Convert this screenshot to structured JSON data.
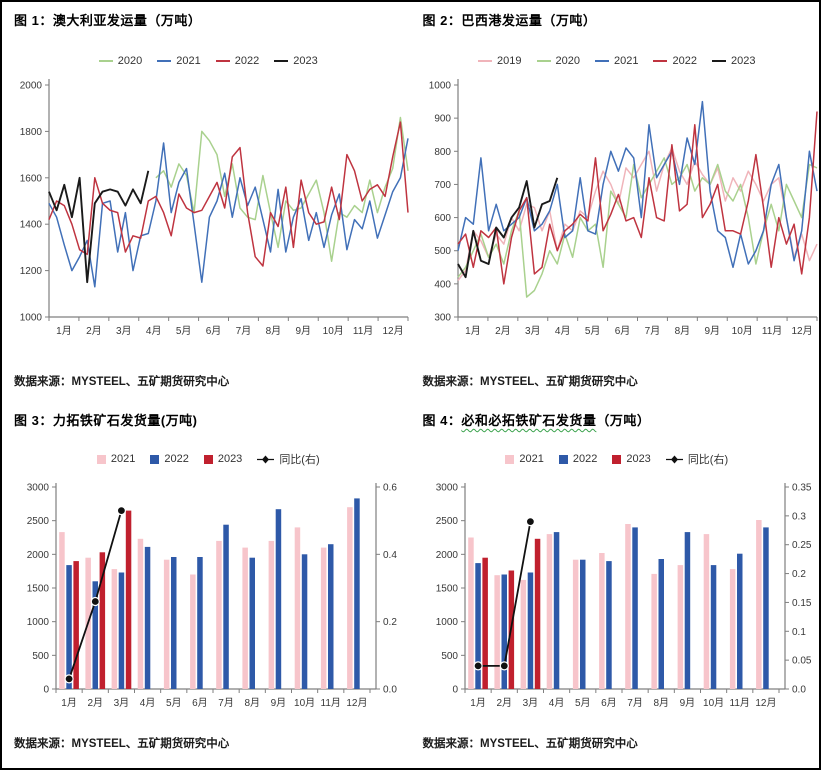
{
  "chart_data": [
    {
      "type": "line",
      "title": "图 1：澳大利亚发运量（万吨）",
      "source": "数据来源：MYSTEEL、五矿期货研究中心",
      "ylabel": "万吨",
      "ylim": [
        1000,
        2000
      ],
      "yticks": [
        1000,
        1200,
        1400,
        1600,
        1800,
        2000
      ],
      "x_months": [
        "1月",
        "2月",
        "3月",
        "4月",
        "5月",
        "6月",
        "7月",
        "8月",
        "9月",
        "10月",
        "11月",
        "12月"
      ],
      "points_per_month": 4,
      "grid": false,
      "legend_position": "top",
      "series": [
        {
          "name": "2020",
          "color": "#a9d18e",
          "values": [
            null,
            null,
            null,
            null,
            null,
            null,
            null,
            null,
            null,
            null,
            null,
            null,
            null,
            null,
            1600,
            1630,
            1560,
            1660,
            1610,
            1450,
            1800,
            1760,
            1700,
            1520,
            1660,
            1470,
            1430,
            1420,
            1610,
            1450,
            1300,
            1500,
            1460,
            1470,
            1530,
            1590,
            1450,
            1240,
            1450,
            1430,
            1480,
            1450,
            1590,
            1450,
            1560,
            1640,
            1860,
            1630
          ]
        },
        {
          "name": "2021",
          "color": "#4170b8",
          "values": [
            1490,
            1430,
            1310,
            1200,
            1260,
            1330,
            1130,
            1490,
            1500,
            1280,
            1450,
            1200,
            1350,
            1360,
            1500,
            1750,
            1450,
            1580,
            1640,
            1400,
            1150,
            1430,
            1500,
            1620,
            1430,
            1600,
            1480,
            1560,
            1420,
            1280,
            1550,
            1280,
            1430,
            1510,
            1330,
            1450,
            1300,
            1440,
            1530,
            1290,
            1420,
            1380,
            1500,
            1340,
            1440,
            1540,
            1600,
            1770
          ]
        },
        {
          "name": "2022",
          "color": "#bf3440",
          "values": [
            1420,
            1500,
            1480,
            1400,
            1290,
            1270,
            1600,
            1490,
            1460,
            1450,
            1280,
            1350,
            1340,
            1500,
            1520,
            1450,
            1350,
            1530,
            1470,
            1450,
            1460,
            1520,
            1580,
            1470,
            1690,
            1730,
            1450,
            1260,
            1220,
            1450,
            1390,
            1560,
            1300,
            1590,
            1450,
            1400,
            1410,
            1560,
            1420,
            1700,
            1630,
            1500,
            1550,
            1570,
            1520,
            1690,
            1840,
            1450
          ]
        },
        {
          "name": "2023",
          "color": "#1a1a1a",
          "values": [
            1540,
            1460,
            1570,
            1430,
            1600,
            1150,
            1490,
            1540,
            1550,
            1540,
            1480,
            1550,
            1490,
            1630,
            null,
            null,
            null,
            null,
            null,
            null,
            null,
            null,
            null,
            null,
            null,
            null,
            null,
            null,
            null,
            null,
            null,
            null,
            null,
            null,
            null,
            null,
            null,
            null,
            null,
            null,
            null,
            null,
            null,
            null,
            null,
            null,
            null,
            null
          ]
        }
      ]
    },
    {
      "type": "line",
      "title": "图 2：巴西港发运量（万吨）",
      "source": "数据来源：MYSTEEL、五矿期货研究中心",
      "ylabel": "万吨",
      "ylim": [
        300,
        1000
      ],
      "yticks": [
        300,
        400,
        500,
        600,
        700,
        800,
        900,
        1000
      ],
      "x_months": [
        "1月",
        "2月",
        "3月",
        "4月",
        "5月",
        "6月",
        "7月",
        "8月",
        "9月",
        "10月",
        "11月",
        "12月"
      ],
      "points_per_month": 4,
      "grid": false,
      "legend_position": "top",
      "series": [
        {
          "name": "2019",
          "color": "#f0b4ba",
          "values": [
            410,
            440,
            560,
            530,
            480,
            550,
            520,
            600,
            560,
            640,
            630,
            560,
            620,
            500,
            580,
            560,
            620,
            600,
            680,
            740,
            700,
            640,
            750,
            720,
            760,
            800,
            680,
            760,
            810,
            740,
            700,
            770,
            730,
            700,
            750,
            650,
            720,
            680,
            740,
            700,
            650,
            700,
            720,
            600,
            480,
            550,
            470,
            520
          ]
        },
        {
          "name": "2020",
          "color": "#a9d18e",
          "values": [
            420,
            450,
            500,
            550,
            480,
            520,
            460,
            560,
            620,
            360,
            380,
            430,
            500,
            460,
            550,
            480,
            600,
            560,
            580,
            450,
            680,
            640,
            600,
            760,
            660,
            700,
            740,
            780,
            700,
            720,
            760,
            680,
            720,
            700,
            760,
            680,
            650,
            700,
            600,
            460,
            560,
            640,
            560,
            700,
            650,
            600,
            760,
            750
          ]
        },
        {
          "name": "2021",
          "color": "#4170b8",
          "values": [
            500,
            600,
            580,
            780,
            560,
            640,
            560,
            580,
            600,
            660,
            560,
            580,
            620,
            700,
            540,
            560,
            720,
            560,
            550,
            700,
            800,
            740,
            810,
            780,
            600,
            880,
            720,
            760,
            800,
            700,
            840,
            760,
            950,
            680,
            560,
            540,
            450,
            550,
            460,
            500,
            560,
            700,
            760,
            600,
            470,
            560,
            800,
            680
          ]
        },
        {
          "name": "2022",
          "color": "#bf3440",
          "values": [
            520,
            550,
            450,
            560,
            540,
            570,
            400,
            540,
            620,
            660,
            430,
            450,
            580,
            500,
            560,
            580,
            610,
            590,
            780,
            560,
            610,
            670,
            590,
            600,
            540,
            720,
            600,
            590,
            820,
            620,
            640,
            880,
            600,
            640,
            700,
            560,
            560,
            550,
            650,
            790,
            630,
            450,
            600,
            520,
            580,
            430,
            600,
            920
          ]
        },
        {
          "name": "2023",
          "color": "#1a1a1a",
          "values": [
            460,
            420,
            560,
            470,
            460,
            570,
            540,
            600,
            630,
            710,
            570,
            640,
            650,
            720,
            null,
            null,
            null,
            null,
            null,
            null,
            null,
            null,
            null,
            null,
            null,
            null,
            null,
            null,
            null,
            null,
            null,
            null,
            null,
            null,
            null,
            null,
            null,
            null,
            null,
            null,
            null,
            null,
            null,
            null,
            null,
            null,
            null,
            null
          ]
        }
      ]
    },
    {
      "type": "bar",
      "title": "图 3：力拓铁矿石发货量(万吨)",
      "source": "数据来源：MYSTEEL、五矿期货研究中心",
      "categories": [
        "1月",
        "2月",
        "3月",
        "4月",
        "5月",
        "6月",
        "7月",
        "8月",
        "9月",
        "10月",
        "11月",
        "12月"
      ],
      "ylim_left": [
        0,
        3000
      ],
      "yticks_left": [
        0,
        500,
        1000,
        1500,
        2000,
        2500,
        3000
      ],
      "ylim_right": [
        0,
        0.6
      ],
      "yticks_right": [
        0,
        0.2,
        0.4,
        0.6
      ],
      "yticks_right_labels": [
        "0.0",
        "0.2",
        "0.4",
        "0.6"
      ],
      "grid": false,
      "legend_position": "top",
      "series": [
        {
          "name": "2021",
          "color": "#f7c5cb",
          "values": [
            2330,
            1950,
            1780,
            2230,
            1920,
            1700,
            2200,
            2100,
            2200,
            2400,
            2100,
            2700
          ]
        },
        {
          "name": "2022",
          "color": "#2e59a8",
          "values": [
            1840,
            1600,
            1730,
            2110,
            1960,
            1960,
            2440,
            1950,
            2670,
            2000,
            2150,
            2830
          ]
        },
        {
          "name": "2023",
          "color": "#c0202e",
          "values": [
            1900,
            2030,
            2650,
            null,
            null,
            null,
            null,
            null,
            null,
            null,
            null,
            null
          ]
        }
      ],
      "line_series": {
        "name": "同比(右)",
        "color": "#111111",
        "axis": "right",
        "values": [
          0.03,
          0.26,
          0.53,
          null,
          null,
          null,
          null,
          null,
          null,
          null,
          null,
          null
        ]
      }
    },
    {
      "type": "bar",
      "title_prefix": "图 4：",
      "title_main": "必和必拓铁矿石发货量",
      "title_suffix": "（万吨）",
      "source": "数据来源：MYSTEEL、五矿期货研究中心",
      "categories": [
        "1月",
        "2月",
        "3月",
        "4月",
        "5月",
        "6月",
        "7月",
        "8月",
        "9月",
        "10月",
        "11月",
        "12月"
      ],
      "ylim_left": [
        0,
        3000
      ],
      "yticks_left": [
        0,
        500,
        1000,
        1500,
        2000,
        2500,
        3000
      ],
      "ylim_right": [
        0,
        0.35
      ],
      "yticks_right": [
        0,
        0.05,
        0.1,
        0.15,
        0.2,
        0.25,
        0.3,
        0.35
      ],
      "yticks_right_labels": [
        "0.0",
        "0.05",
        "0.1",
        "0.15",
        "0.2",
        "0.25",
        "0.3",
        "0.35"
      ],
      "grid": false,
      "legend_position": "top",
      "series": [
        {
          "name": "2021",
          "color": "#f7c5cb",
          "values": [
            2250,
            1690,
            1620,
            2300,
            1920,
            2020,
            2450,
            1710,
            1840,
            2300,
            1780,
            2510
          ]
        },
        {
          "name": "2022",
          "color": "#2e59a8",
          "values": [
            1870,
            1700,
            1730,
            2330,
            1920,
            1900,
            2400,
            1930,
            2330,
            1840,
            2010,
            2400
          ]
        },
        {
          "name": "2023",
          "color": "#c0202e",
          "values": [
            1950,
            1760,
            2230,
            null,
            null,
            null,
            null,
            null,
            null,
            null,
            null,
            null
          ]
        }
      ],
      "line_series": {
        "name": "同比(右)",
        "color": "#111111",
        "axis": "right",
        "values": [
          0.04,
          0.04,
          0.29,
          null,
          null,
          null,
          null,
          null,
          null,
          null,
          null,
          null
        ]
      }
    }
  ]
}
